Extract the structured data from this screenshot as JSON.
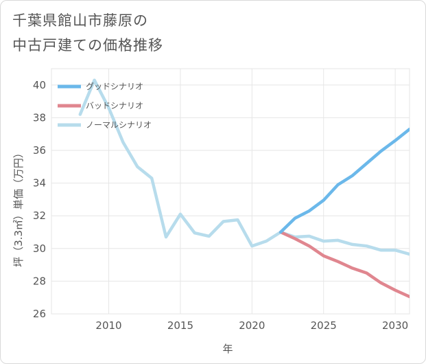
{
  "title_lines": [
    "千葉県館山市藤原の",
    "中古戸建ての価格推移"
  ],
  "chart_data": {
    "type": "line",
    "title": "千葉県館山市藤原の中古戸建ての価格推移",
    "xlabel": "年",
    "ylabel": "坪（3.3㎡）単価（万円）",
    "xlim": [
      2006,
      2031
    ],
    "ylim": [
      26,
      41
    ],
    "xticks": [
      2010,
      2015,
      2020,
      2025,
      2030
    ],
    "yticks": [
      26,
      28,
      30,
      32,
      34,
      36,
      38,
      40
    ],
    "grid": true,
    "legend_position": "top-left",
    "series": [
      {
        "name": "グッドシナリオ",
        "color": "#6bb8ea",
        "x": [
          2022,
          2023,
          2024,
          2025,
          2026,
          2027,
          2028,
          2029,
          2030,
          2031
        ],
        "y": [
          31.0,
          31.85,
          32.3,
          32.95,
          33.9,
          34.45,
          35.2,
          35.95,
          36.6,
          37.3
        ]
      },
      {
        "name": "バッドシナリオ",
        "color": "#e0868f",
        "x": [
          2022,
          2023,
          2024,
          2025,
          2026,
          2027,
          2028,
          2029,
          2030,
          2031
        ],
        "y": [
          31.0,
          30.6,
          30.15,
          29.55,
          29.2,
          28.8,
          28.5,
          27.9,
          27.45,
          27.05
        ]
      },
      {
        "name": "ノーマルシナリオ",
        "color": "#b7dcec",
        "x": [
          2008,
          2009,
          2010,
          2011,
          2012,
          2013,
          2014,
          2015,
          2016,
          2017,
          2018,
          2019,
          2020,
          2021,
          2022,
          2023,
          2024,
          2025,
          2026,
          2027,
          2028,
          2029,
          2030,
          2031
        ],
        "y": [
          38.2,
          40.3,
          38.6,
          36.5,
          35.0,
          34.3,
          30.7,
          32.1,
          30.95,
          30.75,
          31.65,
          31.75,
          30.15,
          30.45,
          31.0,
          30.7,
          30.75,
          30.45,
          30.5,
          30.25,
          30.15,
          29.9,
          29.9,
          29.65
        ]
      }
    ]
  }
}
